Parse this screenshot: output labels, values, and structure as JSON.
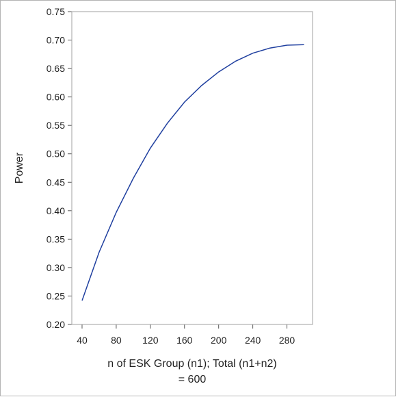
{
  "chart_data": {
    "type": "line",
    "title": "",
    "xlabel_lines": [
      "n of ESK Group (n1); Total (n1+n2)",
      "= 600"
    ],
    "ylabel": "Power",
    "xlim": [
      28,
      310
    ],
    "ylim": [
      0.2,
      0.75
    ],
    "x_ticks": [
      40,
      80,
      120,
      160,
      200,
      240,
      280
    ],
    "y_ticks": [
      0.2,
      0.25,
      0.3,
      0.35,
      0.4,
      0.45,
      0.5,
      0.55,
      0.6,
      0.65,
      0.7,
      0.75
    ],
    "y_tick_labels": [
      "0.20",
      "0.25",
      "0.30",
      "0.35",
      "0.40",
      "0.45",
      "0.50",
      "0.55",
      "0.60",
      "0.65",
      "0.70",
      "0.75"
    ],
    "grid": false,
    "series": [
      {
        "color": "#1f3f9f",
        "x": [
          40,
          60,
          80,
          100,
          120,
          140,
          160,
          180,
          200,
          220,
          240,
          260,
          280,
          300
        ],
        "y": [
          0.242,
          0.327,
          0.397,
          0.457,
          0.51,
          0.554,
          0.591,
          0.62,
          0.644,
          0.663,
          0.677,
          0.686,
          0.691,
          0.692
        ]
      }
    ]
  }
}
